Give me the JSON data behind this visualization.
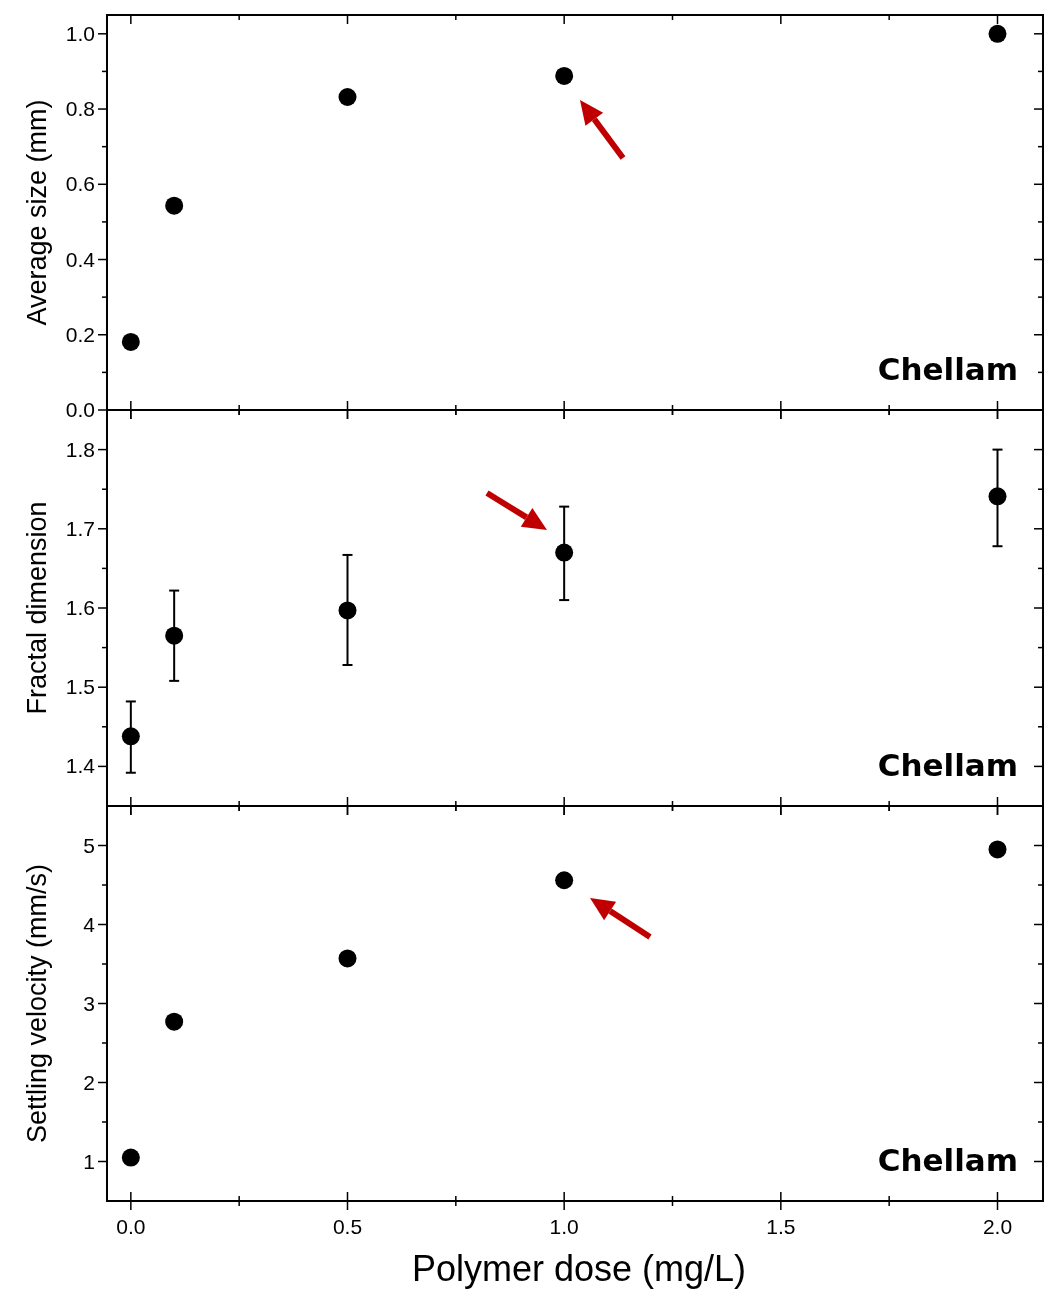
{
  "chart_data": [
    {
      "type": "scatter",
      "ylabel": "Average size (mm)",
      "x": [
        0,
        0.1,
        0.5,
        1.0,
        2.0
      ],
      "values": [
        0.181,
        0.543,
        0.832,
        0.888,
        1.0
      ],
      "color": "#000000",
      "marker": "circle",
      "xlim": [
        -0.055,
        2.105
      ],
      "ylim": [
        0,
        1.05
      ],
      "yticks": [
        {
          "value": 0,
          "label": "0.0"
        },
        {
          "value": 0.1,
          "label": null
        },
        0.2,
        {
          "value": 0.3,
          "label": null
        },
        0.4,
        {
          "value": 0.5,
          "label": null
        },
        0.6,
        {
          "value": 0.7,
          "label": null
        },
        0.8,
        {
          "value": 0.9,
          "label": null
        },
        {
          "value": 1,
          "label": "1.0"
        }
      ],
      "tick_labels": "y",
      "annotations": [
        "Chellam"
      ]
    },
    {
      "type": "scatter",
      "ylabel": "Fractal dimension",
      "x": [
        0,
        0.1,
        0.5,
        1.0,
        2.0
      ],
      "values": [
        1.438,
        1.565,
        1.597,
        1.67,
        1.741
      ],
      "errors": [
        [
          1.392,
          1.482
        ],
        [
          1.508,
          1.622
        ],
        [
          1.528,
          1.667
        ],
        [
          1.61,
          1.728
        ],
        [
          1.678,
          1.8
        ]
      ],
      "color": "#000000",
      "marker": "circle",
      "xlim": [
        -0.055,
        2.105
      ],
      "ylim": [
        1.35,
        1.85
      ],
      "yticks": [
        1.4,
        {
          "value": 1.45,
          "label": null
        },
        1.5,
        {
          "value": 1.55,
          "label": null
        },
        1.6,
        {
          "value": 1.65,
          "label": null
        },
        1.7,
        {
          "value": 1.75,
          "label": null
        },
        1.8
      ],
      "tick_labels": "y",
      "annotations": [
        "Chellam"
      ]
    },
    {
      "type": "scatter",
      "xlabel": "Polymer dose (mg/L)",
      "ylabel": "Settling velocity (mm/s)",
      "x": [
        0,
        0.1,
        0.5,
        1.0,
        2.0
      ],
      "values": [
        1.05,
        2.77,
        3.57,
        4.56,
        4.95
      ],
      "color": "#000000",
      "marker": "circle",
      "xlim": [
        -0.055,
        2.105
      ],
      "xticks": [
        {
          "value": 0,
          "label": "0.0"
        },
        {
          "value": 0.25,
          "label": null
        },
        0.5,
        {
          "value": 0.75,
          "label": null
        },
        {
          "value": 1,
          "label": "1.0"
        },
        {
          "value": 1.25,
          "label": null
        },
        1.5,
        {
          "value": 1.75,
          "label": null
        },
        {
          "value": 2,
          "label": "2.0"
        }
      ],
      "ylim": [
        0.5,
        5.5
      ],
      "yticks": [
        1,
        {
          "value": 1.5,
          "label": null
        },
        2,
        {
          "value": 2.5,
          "label": null
        },
        3,
        {
          "value": 3.5,
          "label": null
        },
        4,
        {
          "value": 4.5,
          "label": null
        },
        5
      ],
      "annotations": [
        "Chellam"
      ]
    }
  ]
}
